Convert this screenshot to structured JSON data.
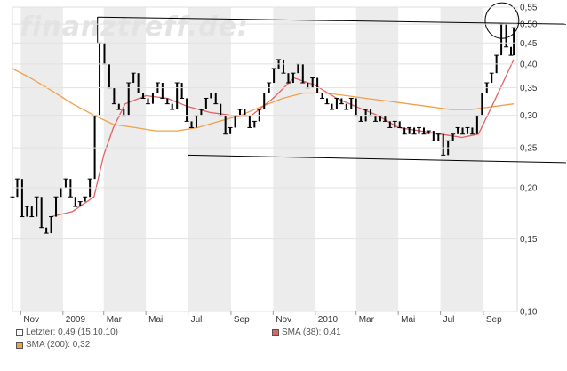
{
  "watermark": "finanztreff.de:",
  "legend": {
    "last": "Letzter: 0,49 (15.10.10)",
    "sma38": "SMA (38): 0,41",
    "sma200": "SMA (200): 0,32"
  },
  "colors": {
    "price": "#000000",
    "sma38": "#e06464",
    "sma200": "#f2a04a",
    "band": "#ececec",
    "trendline": "#000000",
    "last_swatch": "#ffffff"
  },
  "chart_data": {
    "type": "candlestick",
    "y_scale": "log",
    "ylim": [
      0.1,
      0.55
    ],
    "y_ticks": [
      {
        "v": 0.55,
        "label": "0,55"
      },
      {
        "v": 0.5,
        "label": "0,50"
      },
      {
        "v": 0.45,
        "label": "0,45"
      },
      {
        "v": 0.4,
        "label": "0,40"
      },
      {
        "v": 0.35,
        "label": "0,35"
      },
      {
        "v": 0.3,
        "label": "0,30"
      },
      {
        "v": 0.25,
        "label": "0,25"
      },
      {
        "v": 0.2,
        "label": "0,20"
      },
      {
        "v": 0.15,
        "label": "0,15"
      },
      {
        "v": 0.1,
        "label": "0,10"
      }
    ],
    "x_range": [
      "2008-10-20",
      "2010-10-20"
    ],
    "x_ticks": [
      {
        "date": "2008-11-01",
        "label": "Nov"
      },
      {
        "date": "2009-01-01",
        "label": "2009"
      },
      {
        "date": "2009-03-01",
        "label": "Mar"
      },
      {
        "date": "2009-05-01",
        "label": "Mai"
      },
      {
        "date": "2009-07-01",
        "label": "Jul"
      },
      {
        "date": "2009-09-01",
        "label": "Sep"
      },
      {
        "date": "2009-11-01",
        "label": "Nov"
      },
      {
        "date": "2010-01-01",
        "label": "2010"
      },
      {
        "date": "2010-03-01",
        "label": "Mar"
      },
      {
        "date": "2010-05-01",
        "label": "Mai"
      },
      {
        "date": "2010-07-01",
        "label": "Jul"
      },
      {
        "date": "2010-09-01",
        "label": "Sep"
      }
    ],
    "price": [
      [
        "2008-10-20",
        0.19
      ],
      [
        "2008-10-27",
        0.21
      ],
      [
        "2008-11-03",
        0.17
      ],
      [
        "2008-11-10",
        0.18
      ],
      [
        "2008-11-17",
        0.17
      ],
      [
        "2008-11-24",
        0.19
      ],
      [
        "2008-12-01",
        0.16
      ],
      [
        "2008-12-08",
        0.155
      ],
      [
        "2008-12-15",
        0.17
      ],
      [
        "2008-12-22",
        0.19
      ],
      [
        "2008-12-29",
        0.2
      ],
      [
        "2009-01-05",
        0.21
      ],
      [
        "2009-01-12",
        0.19
      ],
      [
        "2009-01-19",
        0.18
      ],
      [
        "2009-01-26",
        0.185
      ],
      [
        "2009-02-02",
        0.19
      ],
      [
        "2009-02-09",
        0.21
      ],
      [
        "2009-02-16",
        0.3
      ],
      [
        "2009-02-23",
        0.45
      ],
      [
        "2009-03-02",
        0.4
      ],
      [
        "2009-03-09",
        0.35
      ],
      [
        "2009-03-16",
        0.32
      ],
      [
        "2009-03-23",
        0.31
      ],
      [
        "2009-03-30",
        0.3
      ],
      [
        "2009-04-06",
        0.36
      ],
      [
        "2009-04-13",
        0.38
      ],
      [
        "2009-04-20",
        0.34
      ],
      [
        "2009-04-27",
        0.33
      ],
      [
        "2009-05-04",
        0.32
      ],
      [
        "2009-05-11",
        0.34
      ],
      [
        "2009-05-18",
        0.36
      ],
      [
        "2009-05-25",
        0.33
      ],
      [
        "2009-06-01",
        0.32
      ],
      [
        "2009-06-08",
        0.31
      ],
      [
        "2009-06-15",
        0.36
      ],
      [
        "2009-06-22",
        0.33
      ],
      [
        "2009-06-29",
        0.29
      ],
      [
        "2009-07-06",
        0.28
      ],
      [
        "2009-07-13",
        0.3
      ],
      [
        "2009-07-20",
        0.31
      ],
      [
        "2009-07-27",
        0.33
      ],
      [
        "2009-08-03",
        0.34
      ],
      [
        "2009-08-10",
        0.32
      ],
      [
        "2009-08-17",
        0.3
      ],
      [
        "2009-08-24",
        0.27
      ],
      [
        "2009-08-31",
        0.28
      ],
      [
        "2009-09-07",
        0.3
      ],
      [
        "2009-09-14",
        0.31
      ],
      [
        "2009-09-21",
        0.3
      ],
      [
        "2009-09-28",
        0.28
      ],
      [
        "2009-10-05",
        0.29
      ],
      [
        "2009-10-12",
        0.31
      ],
      [
        "2009-10-19",
        0.34
      ],
      [
        "2009-10-26",
        0.36
      ],
      [
        "2009-11-02",
        0.39
      ],
      [
        "2009-11-09",
        0.41
      ],
      [
        "2009-11-16",
        0.38
      ],
      [
        "2009-11-23",
        0.36
      ],
      [
        "2009-11-30",
        0.38
      ],
      [
        "2009-12-07",
        0.4
      ],
      [
        "2009-12-14",
        0.36
      ],
      [
        "2009-12-21",
        0.35
      ],
      [
        "2009-12-28",
        0.37
      ],
      [
        "2010-01-04",
        0.34
      ],
      [
        "2010-01-11",
        0.33
      ],
      [
        "2010-01-18",
        0.32
      ],
      [
        "2010-01-25",
        0.31
      ],
      [
        "2010-02-01",
        0.33
      ],
      [
        "2010-02-08",
        0.32
      ],
      [
        "2010-02-15",
        0.31
      ],
      [
        "2010-02-22",
        0.33
      ],
      [
        "2010-03-01",
        0.3
      ],
      [
        "2010-03-08",
        0.29
      ],
      [
        "2010-03-15",
        0.31
      ],
      [
        "2010-03-22",
        0.3
      ],
      [
        "2010-03-29",
        0.29
      ],
      [
        "2010-04-05",
        0.3
      ],
      [
        "2010-04-12",
        0.29
      ],
      [
        "2010-04-19",
        0.28
      ],
      [
        "2010-04-26",
        0.29
      ],
      [
        "2010-05-03",
        0.28
      ],
      [
        "2010-05-10",
        0.27
      ],
      [
        "2010-05-17",
        0.28
      ],
      [
        "2010-05-24",
        0.27
      ],
      [
        "2010-05-31",
        0.28
      ],
      [
        "2010-06-07",
        0.27
      ],
      [
        "2010-06-14",
        0.275
      ],
      [
        "2010-06-21",
        0.26
      ],
      [
        "2010-06-28",
        0.27
      ],
      [
        "2010-07-05",
        0.24
      ],
      [
        "2010-07-12",
        0.26
      ],
      [
        "2010-07-19",
        0.27
      ],
      [
        "2010-07-26",
        0.28
      ],
      [
        "2010-08-02",
        0.27
      ],
      [
        "2010-08-09",
        0.28
      ],
      [
        "2010-08-16",
        0.27
      ],
      [
        "2010-08-23",
        0.3
      ],
      [
        "2010-08-30",
        0.34
      ],
      [
        "2010-09-06",
        0.36
      ],
      [
        "2010-09-13",
        0.38
      ],
      [
        "2010-09-20",
        0.42
      ],
      [
        "2010-09-27",
        0.5
      ],
      [
        "2010-10-04",
        0.44
      ],
      [
        "2010-10-11",
        0.42
      ],
      [
        "2010-10-15",
        0.49
      ]
    ],
    "sma38": [
      [
        "2008-12-15",
        0.17
      ],
      [
        "2009-01-15",
        0.175
      ],
      [
        "2009-02-15",
        0.19
      ],
      [
        "2009-03-01",
        0.24
      ],
      [
        "2009-03-15",
        0.28
      ],
      [
        "2009-04-01",
        0.32
      ],
      [
        "2009-05-01",
        0.335
      ],
      [
        "2009-06-01",
        0.33
      ],
      [
        "2009-07-01",
        0.315
      ],
      [
        "2009-08-01",
        0.305
      ],
      [
        "2009-09-01",
        0.3
      ],
      [
        "2009-10-01",
        0.3
      ],
      [
        "2009-11-01",
        0.33
      ],
      [
        "2009-12-01",
        0.37
      ],
      [
        "2010-01-01",
        0.355
      ],
      [
        "2010-02-01",
        0.33
      ],
      [
        "2010-03-01",
        0.315
      ],
      [
        "2010-04-01",
        0.3
      ],
      [
        "2010-05-01",
        0.28
      ],
      [
        "2010-06-01",
        0.275
      ],
      [
        "2010-07-01",
        0.27
      ],
      [
        "2010-08-01",
        0.265
      ],
      [
        "2010-08-25",
        0.27
      ],
      [
        "2010-09-15",
        0.32
      ],
      [
        "2010-10-15",
        0.41
      ]
    ],
    "sma200": [
      [
        "2008-10-20",
        0.39
      ],
      [
        "2008-11-15",
        0.37
      ],
      [
        "2008-12-15",
        0.345
      ],
      [
        "2009-01-15",
        0.32
      ],
      [
        "2009-02-15",
        0.3
      ],
      [
        "2009-03-15",
        0.285
      ],
      [
        "2009-04-15",
        0.28
      ],
      [
        "2009-05-15",
        0.275
      ],
      [
        "2009-06-15",
        0.275
      ],
      [
        "2009-07-15",
        0.28
      ],
      [
        "2009-08-15",
        0.29
      ],
      [
        "2009-09-15",
        0.3
      ],
      [
        "2009-10-15",
        0.315
      ],
      [
        "2009-11-15",
        0.33
      ],
      [
        "2009-12-15",
        0.34
      ],
      [
        "2010-01-15",
        0.34
      ],
      [
        "2010-02-15",
        0.335
      ],
      [
        "2010-03-15",
        0.33
      ],
      [
        "2010-04-15",
        0.325
      ],
      [
        "2010-05-15",
        0.32
      ],
      [
        "2010-06-15",
        0.315
      ],
      [
        "2010-07-15",
        0.31
      ],
      [
        "2010-08-15",
        0.31
      ],
      [
        "2010-09-15",
        0.315
      ],
      [
        "2010-10-15",
        0.32
      ]
    ],
    "trendlines": [
      {
        "from": [
          "2009-02-20",
          0.52
        ],
        "to": [
          "2010-10-20",
          0.5
        ]
      },
      {
        "from": [
          "2009-07-01",
          0.24
        ],
        "to": [
          "2010-10-20",
          0.23
        ]
      }
    ],
    "annotation_circle": {
      "center": [
        "2010-09-28",
        0.51
      ]
    }
  }
}
